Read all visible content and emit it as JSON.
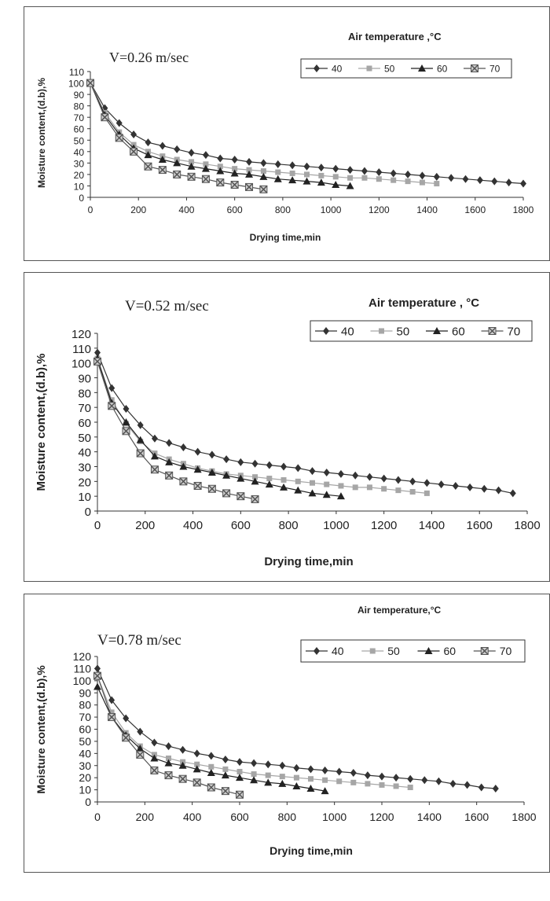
{
  "colors": {
    "s40": "#333333",
    "s50": "#a6a6a6",
    "s60": "#222222",
    "s70": "#555555"
  },
  "chart_data": [
    {
      "type": "line",
      "title": "V=0.26 m/sec",
      "legend_title": "Air temperature ,°C",
      "xlabel": "Drying time,min",
      "ylabel": "Moisture content,(d.b),%",
      "xlim": [
        0,
        1800
      ],
      "ylim": [
        0,
        110
      ],
      "xticks": [
        0,
        200,
        400,
        600,
        800,
        1000,
        1200,
        1400,
        1600,
        1800
      ],
      "yticks": [
        0,
        10,
        20,
        30,
        40,
        50,
        60,
        70,
        80,
        90,
        100,
        110
      ],
      "legend_placement": "top-right",
      "grid": false,
      "series": [
        {
          "name": "40",
          "marker": "diamond",
          "color": "#333333",
          "x": [
            0,
            60,
            120,
            180,
            240,
            300,
            360,
            420,
            480,
            540,
            600,
            660,
            720,
            780,
            840,
            900,
            960,
            1020,
            1080,
            1140,
            1200,
            1260,
            1320,
            1380,
            1440,
            1500,
            1560,
            1620,
            1680,
            1740,
            1800
          ],
          "y": [
            100,
            78,
            65,
            55,
            48,
            45,
            42,
            39,
            37,
            34,
            33,
            31,
            30,
            29,
            28,
            27,
            26,
            25,
            24,
            23,
            22,
            21,
            20,
            19,
            18,
            17,
            16,
            15,
            14,
            13,
            12
          ]
        },
        {
          "name": "50",
          "marker": "square",
          "color": "#a6a6a6",
          "x": [
            0,
            60,
            120,
            180,
            240,
            300,
            360,
            420,
            480,
            540,
            600,
            660,
            720,
            780,
            840,
            900,
            960,
            1020,
            1080,
            1140,
            1200,
            1260,
            1320,
            1380,
            1440
          ],
          "y": [
            100,
            74,
            57,
            46,
            40,
            36,
            33,
            31,
            29,
            27,
            25,
            24,
            23,
            22,
            21,
            20,
            19,
            18,
            17,
            17,
            16,
            15,
            14,
            13,
            12
          ]
        },
        {
          "name": "60",
          "marker": "triangle",
          "color": "#222222",
          "x": [
            0,
            60,
            120,
            180,
            240,
            300,
            360,
            420,
            480,
            540,
            600,
            660,
            720,
            780,
            840,
            900,
            960,
            1020,
            1080
          ],
          "y": [
            100,
            72,
            55,
            43,
            37,
            33,
            30,
            27,
            25,
            23,
            21,
            20,
            18,
            16,
            15,
            14,
            13,
            11,
            10
          ]
        },
        {
          "name": "70",
          "marker": "xsquare",
          "color": "#555555",
          "x": [
            0,
            60,
            120,
            180,
            240,
            300,
            360,
            420,
            480,
            540,
            600,
            660,
            720
          ],
          "y": [
            100,
            70,
            52,
            40,
            27,
            24,
            20,
            18,
            16,
            13,
            11,
            9,
            7
          ]
        }
      ]
    },
    {
      "type": "line",
      "title": "V=0.52 m/sec",
      "legend_title": "Air temperature , °C",
      "xlabel": "Drying time,min",
      "ylabel": "Moisture content,(d.b),%",
      "xlim": [
        0,
        1800
      ],
      "ylim": [
        0,
        120
      ],
      "xticks": [
        0,
        200,
        400,
        600,
        800,
        1000,
        1200,
        1400,
        1600,
        1800
      ],
      "yticks": [
        0,
        10,
        20,
        30,
        40,
        50,
        60,
        70,
        80,
        90,
        100,
        110,
        120
      ],
      "legend_placement": "top-right",
      "grid": false,
      "series": [
        {
          "name": "40",
          "marker": "diamond",
          "color": "#333333",
          "x": [
            0,
            60,
            120,
            180,
            240,
            300,
            360,
            420,
            480,
            540,
            600,
            660,
            720,
            780,
            840,
            900,
            960,
            1020,
            1080,
            1140,
            1200,
            1260,
            1320,
            1380,
            1440,
            1500,
            1560,
            1620,
            1680,
            1740
          ],
          "y": [
            107,
            83,
            69,
            58,
            49,
            46,
            43,
            40,
            38,
            35,
            33,
            32,
            31,
            30,
            29,
            27,
            26,
            25,
            24,
            23,
            22,
            21,
            20,
            19,
            18,
            17,
            16,
            15,
            14,
            12
          ]
        },
        {
          "name": "50",
          "marker": "square",
          "color": "#a6a6a6",
          "x": [
            0,
            60,
            120,
            180,
            240,
            300,
            360,
            420,
            480,
            540,
            600,
            660,
            720,
            780,
            840,
            900,
            960,
            1020,
            1080,
            1140,
            1200,
            1260,
            1320,
            1380
          ],
          "y": [
            103,
            75,
            59,
            47,
            39,
            35,
            32,
            29,
            27,
            25,
            24,
            23,
            22,
            21,
            20,
            19,
            18,
            17,
            16,
            16,
            15,
            14,
            13,
            12
          ]
        },
        {
          "name": "60",
          "marker": "triangle",
          "color": "#222222",
          "x": [
            0,
            60,
            120,
            180,
            240,
            300,
            360,
            420,
            480,
            540,
            600,
            660,
            720,
            780,
            840,
            900,
            960,
            1020
          ],
          "y": [
            103,
            73,
            60,
            48,
            37,
            33,
            30,
            28,
            26,
            24,
            22,
            20,
            18,
            16,
            14,
            12,
            11,
            10
          ]
        },
        {
          "name": "70",
          "marker": "xsquare",
          "color": "#555555",
          "x": [
            0,
            60,
            120,
            180,
            240,
            300,
            360,
            420,
            480,
            540,
            600,
            660
          ],
          "y": [
            101,
            71,
            54,
            39,
            28,
            24,
            20,
            17,
            15,
            12,
            10,
            8
          ]
        }
      ]
    },
    {
      "type": "line",
      "title": "V=0.78 m/sec",
      "legend_title": "Air temperature,°C",
      "xlabel": "Drying time,min",
      "ylabel": "Moisture content,(d.b),%",
      "xlim": [
        0,
        1800
      ],
      "ylim": [
        0,
        120
      ],
      "xticks": [
        0,
        200,
        400,
        600,
        800,
        1000,
        1200,
        1400,
        1600,
        1800
      ],
      "yticks": [
        0,
        10,
        20,
        30,
        40,
        50,
        60,
        70,
        80,
        90,
        100,
        110,
        120
      ],
      "legend_placement": "top-right",
      "grid": false,
      "series": [
        {
          "name": "40",
          "marker": "diamond",
          "color": "#333333",
          "x": [
            0,
            60,
            120,
            180,
            240,
            300,
            360,
            420,
            480,
            540,
            600,
            660,
            720,
            780,
            840,
            900,
            960,
            1020,
            1080,
            1140,
            1200,
            1260,
            1320,
            1380,
            1440,
            1500,
            1560,
            1620,
            1680
          ],
          "y": [
            110,
            84,
            69,
            58,
            49,
            46,
            43,
            40,
            38,
            35,
            33,
            32,
            31,
            30,
            28,
            27,
            26,
            25,
            24,
            22,
            21,
            20,
            19,
            18,
            17,
            15,
            14,
            12,
            11
          ]
        },
        {
          "name": "50",
          "marker": "square",
          "color": "#a6a6a6",
          "x": [
            0,
            60,
            120,
            180,
            240,
            300,
            360,
            420,
            480,
            540,
            600,
            660,
            720,
            780,
            840,
            900,
            960,
            1020,
            1080,
            1140,
            1200,
            1260,
            1320
          ],
          "y": [
            104,
            74,
            57,
            46,
            39,
            36,
            33,
            31,
            29,
            27,
            25,
            23,
            22,
            21,
            20,
            19,
            18,
            17,
            16,
            15,
            14,
            13,
            12
          ]
        },
        {
          "name": "60",
          "marker": "triangle",
          "color": "#222222",
          "x": [
            0,
            60,
            120,
            180,
            240,
            300,
            360,
            420,
            480,
            540,
            600,
            660,
            720,
            780,
            840,
            900,
            960
          ],
          "y": [
            95,
            70,
            55,
            44,
            36,
            32,
            30,
            27,
            24,
            22,
            20,
            18,
            16,
            15,
            13,
            11,
            9
          ]
        },
        {
          "name": "70",
          "marker": "xsquare",
          "color": "#555555",
          "x": [
            0,
            60,
            120,
            180,
            240,
            300,
            360,
            420,
            480,
            540,
            600
          ],
          "y": [
            104,
            70,
            53,
            39,
            26,
            22,
            19,
            16,
            12,
            9,
            6
          ]
        }
      ]
    }
  ]
}
